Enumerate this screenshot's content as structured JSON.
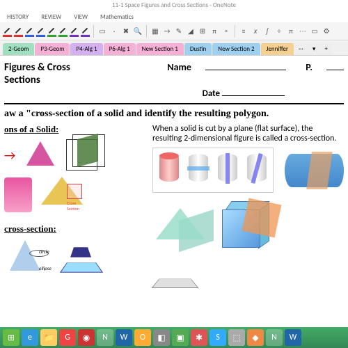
{
  "window": {
    "title": "11-1 Space Figures and Cross Sections - OneNote"
  },
  "menu": {
    "history": "HISTORY",
    "review": "REVIEW",
    "view": "VIEW",
    "math": "Mathematics"
  },
  "pens": {
    "colors": [
      "#e03030",
      "#e03030",
      "#3060e0",
      "#3060e0",
      "#30a030",
      "#30a030",
      "#7030c0",
      "#7030c0"
    ]
  },
  "ribbon_tools": [
    "▭",
    "·",
    "✖",
    "🔍",
    "▦",
    "→",
    "✎",
    "◢",
    "⊞",
    "π",
    "∘",
    "≡",
    "𝑥",
    "∫",
    "÷",
    "π",
    "⋯",
    "▭",
    "⚙"
  ],
  "sections": [
    {
      "label": "2-Geom",
      "color": "#a0e0c0"
    },
    {
      "label": "P3-Geom",
      "color": "#f5b0d5"
    },
    {
      "label": "P4-Alg 1",
      "color": "#d5b0f0"
    },
    {
      "label": "P6-Alg 1",
      "color": "#f5b0d5"
    },
    {
      "label": "New Section 1",
      "color": "#f5b0d5"
    },
    {
      "label": "Dustin",
      "color": "#a0d0f0"
    },
    {
      "label": "New Section 2",
      "color": "#a0d0f0"
    },
    {
      "label": "Jenniffer",
      "color": "#f5d090"
    }
  ],
  "doc": {
    "title": "Figures & Cross Sections",
    "name_label": "Name",
    "p_label": "P.",
    "date_label": "Date",
    "objective": "aw a \"cross-section of a solid and identify the resulting polygon.",
    "sec1": "ons of a Solid:",
    "sec2": "cross-section:",
    "explain": "When a solid is cut by a plane (flat surface), the resulting 2-dimensional figure is called a cross-section.",
    "cs_small": "Cross Section",
    "circle_lbl": "circle",
    "ellipse_lbl": "ellipse"
  },
  "taskbar": {
    "items": [
      {
        "name": "start",
        "bg": "#6b4",
        "glyph": "⊞"
      },
      {
        "name": "ie",
        "bg": "#39d",
        "glyph": "e"
      },
      {
        "name": "explorer",
        "bg": "#fc6",
        "glyph": "📁"
      },
      {
        "name": "chrome",
        "bg": "#e44",
        "glyph": "G"
      },
      {
        "name": "app1",
        "bg": "#c33",
        "glyph": "◉"
      },
      {
        "name": "onenote",
        "bg": "#83b",
        "glyph": "N"
      },
      {
        "name": "word",
        "bg": "#26a",
        "glyph": "W"
      },
      {
        "name": "outlook",
        "bg": "#fa3",
        "glyph": "O"
      },
      {
        "name": "app2",
        "bg": "#888",
        "glyph": "◧"
      },
      {
        "name": "app3",
        "bg": "#5a5",
        "glyph": "▣"
      },
      {
        "name": "app4",
        "bg": "#d55",
        "glyph": "✱"
      },
      {
        "name": "skype",
        "bg": "#3af",
        "glyph": "S"
      },
      {
        "name": "app5",
        "bg": "#aaa",
        "glyph": "⬚"
      },
      {
        "name": "app6",
        "bg": "#e84",
        "glyph": "◆"
      },
      {
        "name": "onenote2",
        "bg": "#83b",
        "glyph": "N"
      },
      {
        "name": "word2",
        "bg": "#26a",
        "glyph": "W"
      }
    ]
  }
}
